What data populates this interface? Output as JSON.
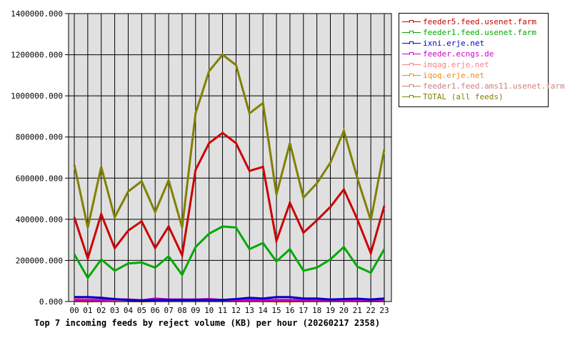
{
  "chart_data": {
    "type": "line",
    "title": "Top 7 incoming feeds by reject volume (KB) per hour (20260217 2358)",
    "xlabel": "",
    "ylabel": "",
    "ylim": [
      0,
      1400000
    ],
    "y_ticks": [
      "0.000",
      "200000.000",
      "400000.000",
      "600000.000",
      "800000.000",
      "1000000.000",
      "1200000.000",
      "1400000.000"
    ],
    "grid": true,
    "legend_position": "right",
    "categories": [
      "00",
      "01",
      "02",
      "03",
      "04",
      "05",
      "06",
      "07",
      "08",
      "09",
      "10",
      "11",
      "12",
      "13",
      "14",
      "15",
      "16",
      "17",
      "18",
      "19",
      "20",
      "21",
      "22",
      "23"
    ],
    "series": [
      {
        "name": "feeder5.feed.usenet.farm",
        "color": "#cc0000",
        "values": [
          410000,
          210000,
          425000,
          260000,
          345000,
          390000,
          260000,
          365000,
          225000,
          640000,
          770000,
          820000,
          770000,
          635000,
          655000,
          295000,
          480000,
          335000,
          395000,
          460000,
          545000,
          400000,
          235000,
          465000
        ]
      },
      {
        "name": "feeder1.feed.usenet.farm",
        "color": "#00aa00",
        "values": [
          230000,
          115000,
          205000,
          150000,
          185000,
          190000,
          165000,
          220000,
          130000,
          265000,
          330000,
          365000,
          360000,
          255000,
          285000,
          195000,
          255000,
          150000,
          165000,
          205000,
          265000,
          170000,
          140000,
          255000
        ]
      },
      {
        "name": "ixni.erje.net",
        "color": "#0000cc",
        "values": [
          22000,
          22000,
          18000,
          12000,
          8000,
          6000,
          8000,
          8000,
          8000,
          8000,
          8000,
          8000,
          12000,
          18000,
          15000,
          22000,
          22000,
          15000,
          15000,
          10000,
          12000,
          14000,
          10000,
          15000
        ]
      },
      {
        "name": "feeder.ecngs.de",
        "color": "#cc00cc",
        "values": [
          8000,
          8000,
          8000,
          10000,
          10000,
          6000,
          15000,
          10000,
          10000,
          10000,
          12000,
          8000,
          8000,
          8000,
          8000,
          8000,
          8000,
          8000,
          8000,
          8000,
          8000,
          8000,
          6000,
          8000
        ]
      },
      {
        "name": "imqag.erje.net",
        "color": "#ff8080",
        "values": [
          12000,
          10000,
          8000,
          5000,
          5000,
          5000,
          5000,
          5000,
          5000,
          5000,
          5000,
          5000,
          3000,
          5000,
          5000,
          5000,
          5000,
          5000,
          5000,
          5000,
          5000,
          5000,
          5000,
          5000
        ]
      },
      {
        "name": "iqoq.erje.net",
        "color": "#ff8800",
        "values": [
          2000,
          1000,
          2000,
          2000,
          2000,
          1000,
          2000,
          2000,
          2000,
          2000,
          2000,
          2000,
          2000,
          2000,
          2000,
          1000,
          1000,
          2000,
          2000,
          2000,
          2000,
          2000,
          2000,
          2000
        ]
      },
      {
        "name": "feeder1.feed.ams11.usenet.farm",
        "color": "#cc8080",
        "values": [
          5000,
          5000,
          5000,
          5000,
          5000,
          5000,
          5000,
          5000,
          5000,
          5000,
          5000,
          5000,
          5000,
          5000,
          5000,
          5000,
          5000,
          5000,
          5000,
          5000,
          5000,
          5000,
          5000,
          5000
        ]
      },
      {
        "name": "TOTAL (all feeds)",
        "color": "#808000",
        "values": [
          665000,
          360000,
          655000,
          410000,
          535000,
          585000,
          435000,
          590000,
          360000,
          915000,
          1120000,
          1200000,
          1150000,
          915000,
          965000,
          520000,
          770000,
          505000,
          575000,
          675000,
          830000,
          600000,
          395000,
          740000
        ]
      }
    ]
  }
}
